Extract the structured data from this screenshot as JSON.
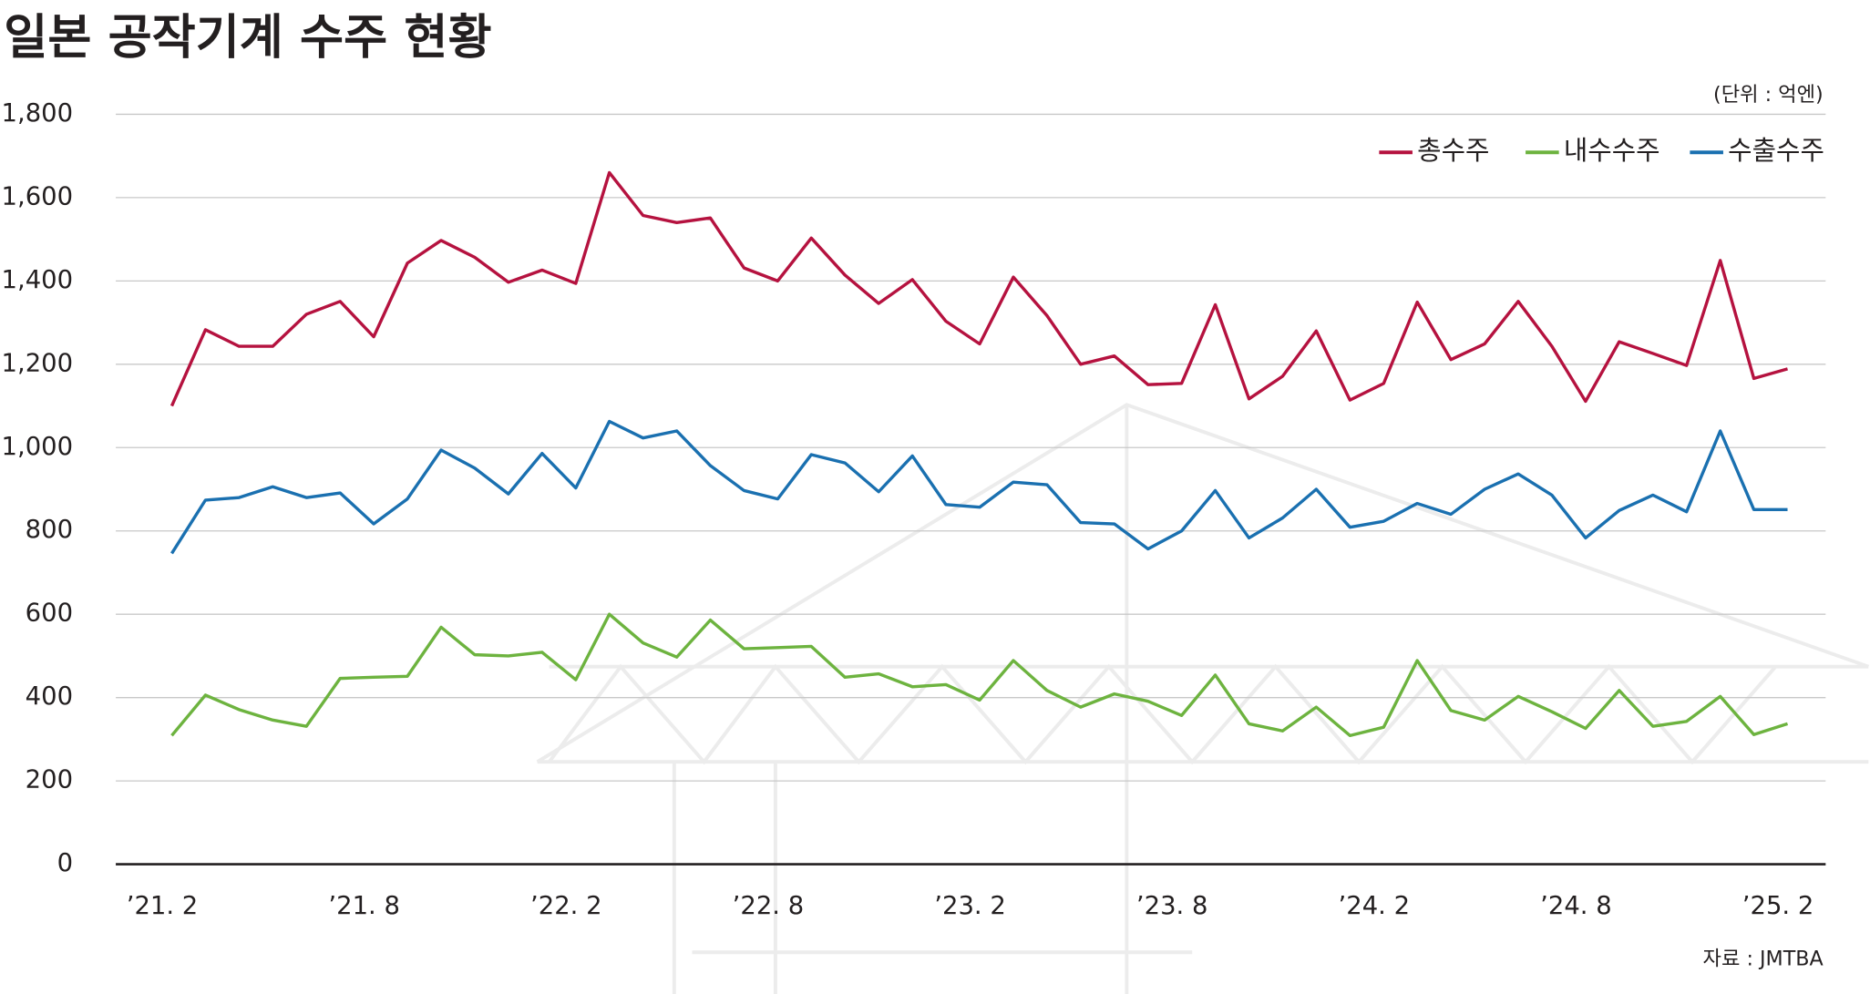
{
  "chart_data": {
    "type": "line",
    "title": "일본 공작기계 수주 현황",
    "unit": "(단위 : 억엔)",
    "source": "자료 : JMTBA",
    "categories": [
      "’21. 2",
      null,
      null,
      null,
      null,
      null,
      "’21. 8",
      null,
      null,
      null,
      null,
      null,
      "’22. 2",
      null,
      null,
      null,
      null,
      null,
      "’22. 8",
      null,
      null,
      null,
      null,
      null,
      "’23. 2",
      null,
      null,
      null,
      null,
      null,
      "’23. 8",
      null,
      null,
      null,
      null,
      null,
      "’24. 2",
      null,
      null,
      null,
      null,
      null,
      "’24. 8",
      null,
      null,
      null,
      null,
      null,
      "’25. 2"
    ],
    "series": [
      {
        "name": "총수주",
        "color": "#b5123f",
        "values": [
          1100,
          1283,
          1243,
          1243,
          1320,
          1351,
          1266,
          1443,
          1497,
          1457,
          1397,
          1426,
          1394,
          1660,
          1557,
          1540,
          1551,
          1431,
          1400,
          1503,
          1414,
          1346,
          1403,
          1303,
          1249,
          1409,
          1317,
          1200,
          1220,
          1151,
          1154,
          1343,
          1117,
          1171,
          1280,
          1114,
          1154,
          1349,
          1211,
          1249,
          1351,
          1243,
          1111,
          1254,
          1226,
          1197,
          1449,
          1166,
          1189
        ]
      },
      {
        "name": "내수수주",
        "color": "#6db33f",
        "values": [
          309,
          406,
          371,
          346,
          331,
          446,
          449,
          451,
          569,
          503,
          500,
          509,
          443,
          600,
          531,
          497,
          586,
          517,
          520,
          523,
          449,
          457,
          426,
          431,
          394,
          489,
          417,
          377,
          409,
          391,
          357,
          454,
          337,
          320,
          377,
          309,
          329,
          489,
          369,
          346,
          403,
          366,
          326,
          417,
          331,
          343,
          403,
          311,
          337
        ]
      },
      {
        "name": "수출수주",
        "color": "#1a70b0",
        "values": [
          746,
          874,
          880,
          906,
          880,
          891,
          817,
          877,
          994,
          951,
          889,
          986,
          903,
          1063,
          1023,
          1040,
          957,
          897,
          877,
          983,
          963,
          894,
          980,
          863,
          857,
          917,
          911,
          820,
          817,
          757,
          800,
          897,
          783,
          831,
          900,
          809,
          823,
          866,
          840,
          900,
          937,
          886,
          783,
          849,
          886,
          846,
          1040,
          851,
          851
        ]
      }
    ],
    "ylim": [
      0,
      1800
    ],
    "yticks": [
      0,
      200,
      400,
      600,
      800,
      {
        "value": 1000,
        "label": "1,000"
      },
      {
        "value": 1200,
        "label": "1,200"
      },
      {
        "value": 1400,
        "label": "1,400"
      },
      {
        "value": 1600,
        "label": "1,600"
      },
      {
        "value": 1800,
        "label": "1,800"
      }
    ],
    "grid": true,
    "legend": "top-right"
  }
}
